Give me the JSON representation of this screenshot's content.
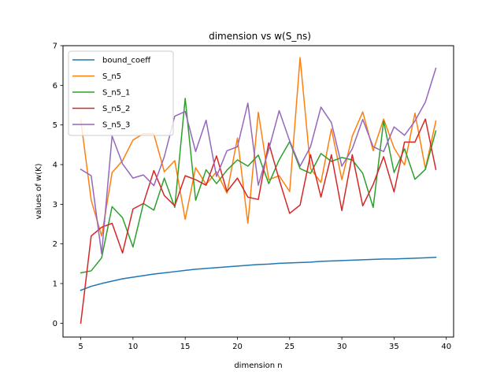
{
  "chart_data": {
    "type": "line",
    "title": "dimension vs w(S_ns)",
    "xlabel": "dimension n",
    "ylabel": "values of w(K)",
    "xlim": [
      3.3,
      40.7
    ],
    "ylim": [
      -0.35,
      7.0
    ],
    "xticks": [
      5,
      10,
      15,
      20,
      25,
      30,
      35,
      40
    ],
    "yticks": [
      0,
      1,
      2,
      3,
      4,
      5,
      6,
      7
    ],
    "grid": false,
    "legend_position": "top-left",
    "x": [
      5,
      6,
      7,
      8,
      9,
      10,
      11,
      12,
      13,
      14,
      15,
      16,
      17,
      18,
      19,
      20,
      21,
      22,
      23,
      24,
      25,
      26,
      27,
      28,
      29,
      30,
      31,
      32,
      33,
      34,
      35,
      36,
      37,
      38,
      39
    ],
    "series": [
      {
        "name": "bound_coeff",
        "color": "#1f77b4",
        "values": [
          0.83,
          0.93,
          1.0,
          1.06,
          1.12,
          1.16,
          1.2,
          1.24,
          1.27,
          1.3,
          1.33,
          1.36,
          1.38,
          1.4,
          1.42,
          1.44,
          1.46,
          1.48,
          1.49,
          1.51,
          1.52,
          1.53,
          1.54,
          1.56,
          1.57,
          1.58,
          1.59,
          1.6,
          1.61,
          1.62,
          1.62,
          1.63,
          1.64,
          1.65,
          1.66
        ]
      },
      {
        "name": "S_n5",
        "color": "#ff7f0e",
        "values": [
          5.13,
          3.1,
          2.2,
          3.8,
          4.1,
          4.62,
          4.78,
          4.77,
          3.82,
          4.1,
          2.62,
          3.92,
          3.5,
          3.82,
          3.28,
          4.67,
          2.52,
          5.32,
          3.62,
          3.72,
          3.32,
          6.7,
          3.9,
          3.55,
          4.9,
          3.62,
          4.72,
          5.33,
          4.35,
          5.15,
          4.42,
          3.99,
          5.3,
          3.9,
          5.1
        ]
      },
      {
        "name": "S_n5_1",
        "color": "#2ca02c",
        "values": [
          1.27,
          1.32,
          1.65,
          2.94,
          2.66,
          1.92,
          3.02,
          2.85,
          3.66,
          2.92,
          5.67,
          3.1,
          3.87,
          3.52,
          3.86,
          4.12,
          3.96,
          4.24,
          3.52,
          4.12,
          4.58,
          3.9,
          3.78,
          4.28,
          4.08,
          4.18,
          4.12,
          3.78,
          2.92,
          5.1,
          3.8,
          4.4,
          3.63,
          3.88,
          4.85
        ]
      },
      {
        "name": "S_n5_2",
        "color": "#d62728",
        "values": [
          0.0,
          2.2,
          2.42,
          2.52,
          1.77,
          2.88,
          3.02,
          3.85,
          3.22,
          2.96,
          3.72,
          3.62,
          3.48,
          4.22,
          3.32,
          3.66,
          3.18,
          3.12,
          4.55,
          3.62,
          2.77,
          2.98,
          4.25,
          3.18,
          4.25,
          2.84,
          4.25,
          2.96,
          3.5,
          4.2,
          3.31,
          4.57,
          4.57,
          5.15,
          3.88
        ]
      },
      {
        "name": "S_n5_3",
        "color": "#9467bd",
        "values": [
          3.88,
          3.72,
          1.75,
          4.72,
          4.02,
          3.66,
          3.74,
          3.47,
          4.2,
          5.22,
          5.34,
          4.33,
          5.12,
          3.7,
          4.35,
          4.45,
          5.55,
          3.48,
          4.38,
          5.36,
          4.6,
          3.96,
          4.45,
          5.45,
          5.06,
          3.96,
          4.4,
          5.14,
          4.45,
          4.33,
          4.95,
          4.74,
          5.1,
          5.58,
          6.43
        ]
      }
    ]
  }
}
